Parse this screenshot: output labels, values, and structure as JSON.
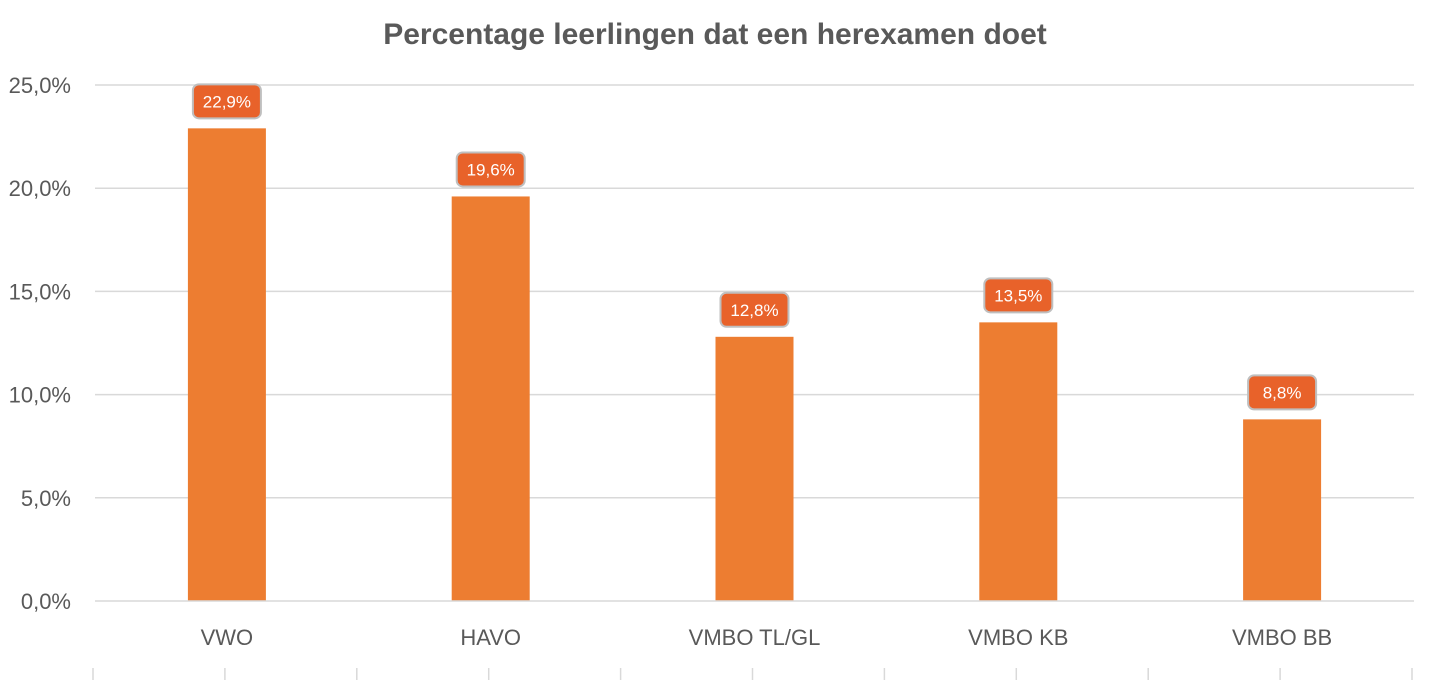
{
  "chart_data": {
    "type": "bar",
    "title": "Percentage leerlingen dat een herexamen doet",
    "xlabel": "",
    "ylabel": "",
    "categories": [
      "VWO",
      "HAVO",
      "VMBO TL/GL",
      "VMBO KB",
      "VMBO BB"
    ],
    "values": [
      22.9,
      19.6,
      12.8,
      13.5,
      8.8
    ],
    "data_labels": [
      "22,9%",
      "19,6%",
      "12,8%",
      "13,5%",
      "8,8%"
    ],
    "ylim": [
      0,
      25
    ],
    "yticks": [
      0,
      5,
      10,
      15,
      20,
      25
    ],
    "ytick_labels": [
      "0,0%",
      "5,0%",
      "10,0%",
      "15,0%",
      "20,0%",
      "25,0%"
    ],
    "grid": true,
    "legend": "none",
    "colors": {
      "bar": "#ED7D31",
      "label_bg": "#E8622A",
      "label_border": "#BFBFBF",
      "grid": "#D9D9D9",
      "text": "#595959"
    }
  }
}
